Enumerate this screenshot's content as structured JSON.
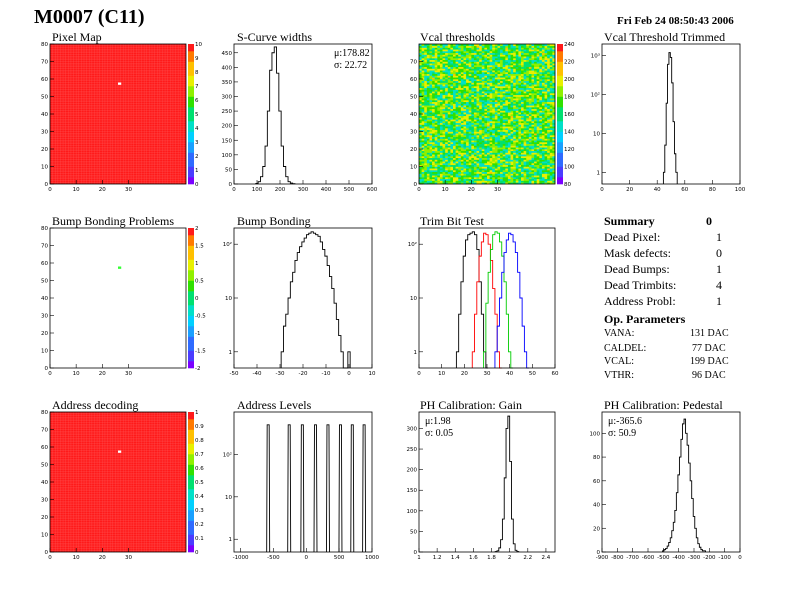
{
  "header": {
    "module": "M0007 (C11)",
    "datetime": "Fri Feb 24 08:50:43 2006"
  },
  "colors": {
    "map_fill": "#ff1a1a",
    "palette": [
      "#7a00ff",
      "#4b3cff",
      "#2f6bff",
      "#1aa0ff",
      "#00d0ff",
      "#00e0c8",
      "#00e070",
      "#30e000",
      "#90f000",
      "#e8f000",
      "#ffc000",
      "#ff7a00",
      "#ff1a1a"
    ],
    "trim_lines": [
      "#000000",
      "#ff0000",
      "#00cc00",
      "#0000ff"
    ],
    "green_dot": "#33ff33"
  },
  "summary": {
    "title": "Summary",
    "total": "0",
    "rows": [
      {
        "label": "Dead Pixel:",
        "value": "1"
      },
      {
        "label": "Mask defects:",
        "value": "0"
      },
      {
        "label": "Dead Bumps:",
        "value": "1"
      },
      {
        "label": "Dead Trimbits:",
        "value": "4"
      },
      {
        "label": "Address Probl:",
        "value": "1"
      }
    ],
    "op_title": "Op. Parameters",
    "op_rows": [
      {
        "label": "VANA:",
        "value": "131 DAC"
      },
      {
        "label": "CALDEL:",
        "value": "77 DAC"
      },
      {
        "label": "VCAL:",
        "value": "199 DAC"
      },
      {
        "label": "VTHR:",
        "value": "96 DAC"
      }
    ]
  },
  "chart_data": [
    {
      "id": "pixel_map",
      "type": "heatmap",
      "title": "Pixel Map",
      "xticks": [
        "0",
        "10",
        "20",
        "30"
      ],
      "yticks": [
        "0",
        "10",
        "20",
        "30",
        "40",
        "50",
        "60",
        "70",
        "80"
      ],
      "xlim": [
        0,
        52
      ],
      "ylim": [
        0,
        80
      ],
      "fill_value": 10,
      "special_cells": [
        {
          "x": 26,
          "y": 57,
          "value": 0
        }
      ],
      "zticks": [
        "0",
        "1",
        "2",
        "3",
        "4",
        "5",
        "6",
        "7",
        "8",
        "9",
        "10"
      ]
    },
    {
      "id": "scurve_widths",
      "type": "bar",
      "title": "S-Curve widths",
      "xticks": [
        "0",
        "100",
        "200",
        "300",
        "400",
        "500",
        "600"
      ],
      "yticks": [
        "0",
        "50",
        "100",
        "150",
        "200",
        "250",
        "300",
        "350",
        "400",
        "450"
      ],
      "xlim": [
        0,
        600
      ],
      "ylim": [
        0,
        480
      ],
      "x": [
        100,
        110,
        120,
        130,
        140,
        150,
        160,
        170,
        180,
        190,
        200,
        210,
        220,
        230,
        240,
        250,
        260
      ],
      "values": [
        2,
        8,
        25,
        60,
        130,
        250,
        390,
        450,
        470,
        380,
        250,
        130,
        60,
        25,
        8,
        3,
        1
      ],
      "stats": [
        "μ:178.82",
        "σ: 22.72"
      ]
    },
    {
      "id": "vcal_thresholds",
      "type": "heatmap",
      "title": "Vcal thresholds",
      "xticks": [
        "0",
        "10",
        "20",
        "30"
      ],
      "yticks": [
        "0",
        "10",
        "20",
        "30",
        "40",
        "50",
        "60",
        "70"
      ],
      "xlim": [
        0,
        52
      ],
      "ylim": [
        0,
        80
      ],
      "zticks": [
        "80",
        "100",
        "120",
        "140",
        "160",
        "180",
        "200",
        "220",
        "240"
      ],
      "zlim": [
        80,
        250
      ],
      "typical_value": 180
    },
    {
      "id": "vcal_threshold_trimmed",
      "type": "bar",
      "title": "Vcal Threshold Trimmed",
      "xticks": [
        "0",
        "20",
        "40",
        "60",
        "80",
        "100"
      ],
      "yticks": [
        "1",
        "10",
        "10²",
        "10³"
      ],
      "log_y": true,
      "xlim": [
        0,
        100
      ],
      "ylim": [
        0.5,
        2000
      ],
      "x": [
        45,
        46,
        47,
        48,
        49,
        50,
        51,
        52,
        53,
        54
      ],
      "values": [
        1,
        5,
        60,
        600,
        1200,
        900,
        200,
        20,
        3,
        1
      ]
    },
    {
      "id": "bump_bonding_problems",
      "type": "heatmap",
      "title": "Bump Bonding Problems",
      "xticks": [
        "0",
        "10",
        "20",
        "30"
      ],
      "yticks": [
        "0",
        "10",
        "20",
        "30",
        "40",
        "50",
        "60",
        "70",
        "80"
      ],
      "xlim": [
        0,
        52
      ],
      "ylim": [
        0,
        80
      ],
      "special_cells": [
        {
          "x": 26,
          "y": 57,
          "value": 1
        }
      ],
      "zticks": [
        "-2",
        "-1.5",
        "-1",
        "-0.5",
        "0",
        "0.5",
        "1",
        "1.5",
        "2"
      ]
    },
    {
      "id": "bump_bonding",
      "type": "bar",
      "title": "Bump Bonding",
      "xticks": [
        "-50",
        "-40",
        "-30",
        "-20",
        "-10",
        "0",
        "10"
      ],
      "yticks": [
        "1",
        "10",
        "10²"
      ],
      "log_y": true,
      "xlim": [
        -50,
        10
      ],
      "ylim": [
        0.5,
        200
      ],
      "x": [
        -29,
        -28,
        -27,
        -26,
        -25,
        -24,
        -23,
        -22,
        -21,
        -20,
        -19,
        -18,
        -17,
        -16,
        -15,
        -14,
        -13,
        -12,
        -11,
        -10,
        -9,
        -8,
        -7,
        -6,
        -5,
        -4,
        -3,
        -2,
        -1,
        0
      ],
      "values": [
        1,
        3,
        5,
        10,
        20,
        30,
        50,
        70,
        90,
        110,
        130,
        150,
        160,
        170,
        160,
        150,
        140,
        110,
        80,
        60,
        40,
        25,
        15,
        8,
        4,
        2,
        1,
        0,
        0,
        1
      ]
    },
    {
      "id": "trim_bit_test",
      "type": "line",
      "title": "Trim Bit Test",
      "xticks": [
        "0",
        "10",
        "20",
        "30",
        "40",
        "50",
        "60"
      ],
      "yticks": [
        "1",
        "10",
        "10²"
      ],
      "log_y": true,
      "xlim": [
        0,
        60
      ],
      "ylim": [
        0.5,
        200
      ],
      "series": [
        {
          "x": [
            17,
            18,
            19,
            20,
            21,
            22,
            23,
            24,
            25,
            26,
            27,
            28,
            29,
            30
          ],
          "values": [
            1,
            5,
            20,
            60,
            120,
            150,
            160,
            170,
            150,
            80,
            20,
            5,
            1,
            0
          ]
        },
        {
          "x": [
            24,
            25,
            26,
            27,
            28,
            29,
            30,
            31,
            32,
            33,
            34,
            35,
            36
          ],
          "values": [
            1,
            5,
            20,
            60,
            110,
            160,
            150,
            100,
            50,
            15,
            5,
            1,
            0
          ]
        },
        {
          "x": [
            29,
            30,
            31,
            32,
            33,
            34,
            35,
            36,
            37,
            38,
            39,
            40,
            41
          ],
          "values": [
            1,
            8,
            30,
            80,
            150,
            170,
            160,
            110,
            60,
            20,
            5,
            1,
            0
          ]
        },
        {
          "x": [
            34,
            35,
            36,
            37,
            38,
            39,
            40,
            41,
            42,
            43,
            44,
            45,
            46,
            47,
            48
          ],
          "values": [
            1,
            3,
            10,
            30,
            70,
            120,
            160,
            150,
            110,
            70,
            30,
            10,
            3,
            1,
            0
          ]
        }
      ]
    },
    {
      "id": "address_decoding",
      "type": "heatmap",
      "title": "Address decoding",
      "xticks": [
        "0",
        "10",
        "20",
        "30"
      ],
      "yticks": [
        "0",
        "10",
        "20",
        "30",
        "40",
        "50",
        "60",
        "70",
        "80"
      ],
      "xlim": [
        0,
        52
      ],
      "ylim": [
        0,
        80
      ],
      "fill_value": 1,
      "special_cells": [
        {
          "x": 26,
          "y": 57,
          "value": 0
        }
      ],
      "zticks": [
        "0",
        "0.1",
        "0.2",
        "0.3",
        "0.4",
        "0.5",
        "0.6",
        "0.7",
        "0.8",
        "0.9",
        "1"
      ]
    },
    {
      "id": "address_levels",
      "type": "bar",
      "title": "Address Levels",
      "xticks": [
        "-1000",
        "-500",
        "0",
        "500",
        "1000"
      ],
      "yticks": [
        "1",
        "10",
        "10²"
      ],
      "log_y": true,
      "xlim": [
        -1100,
        1000
      ],
      "ylim": [
        0.5,
        1000
      ],
      "x": [
        -580,
        -260,
        -60,
        140,
        330,
        520,
        700,
        880
      ],
      "values": [
        500,
        500,
        500,
        500,
        500,
        500,
        500,
        500
      ]
    },
    {
      "id": "ph_calibration_gain",
      "type": "bar",
      "title": "PH Calibration: Gain",
      "xticks": [
        "1",
        "1.2",
        "1.4",
        "1.6",
        "1.8",
        "2",
        "2.2",
        "2.4"
      ],
      "yticks": [
        "0",
        "50",
        "100",
        "150",
        "200",
        "250",
        "300"
      ],
      "xlim": [
        1,
        2.5
      ],
      "ylim": [
        0,
        340
      ],
      "x": [
        1.85,
        1.87,
        1.89,
        1.91,
        1.93,
        1.95,
        1.97,
        1.99,
        2.01,
        2.03,
        2.05,
        2.07,
        2.09
      ],
      "values": [
        1,
        3,
        10,
        30,
        80,
        180,
        300,
        330,
        220,
        80,
        20,
        4,
        1
      ],
      "stats": [
        "μ:1.98",
        "σ: 0.05"
      ]
    },
    {
      "id": "ph_calibration_pedestal",
      "type": "bar",
      "title": "PH Calibration: Pedestal",
      "xticks": [
        "-900",
        "-800",
        "-700",
        "-600",
        "-500",
        "-400",
        "-300",
        "-200",
        "-100",
        "0"
      ],
      "yticks": [
        "0",
        "20",
        "40",
        "60",
        "80",
        "100"
      ],
      "xlim": [
        -900,
        0
      ],
      "ylim": [
        0,
        118
      ],
      "x": [
        -500,
        -490,
        -480,
        -470,
        -460,
        -450,
        -440,
        -430,
        -420,
        -410,
        -400,
        -390,
        -380,
        -370,
        -360,
        -350,
        -340,
        -330,
        -320,
        -310,
        -300,
        -290,
        -280,
        -270,
        -260,
        -250,
        -240,
        -230
      ],
      "values": [
        1,
        2,
        3,
        5,
        8,
        12,
        18,
        25,
        35,
        50,
        65,
        80,
        95,
        108,
        112,
        100,
        90,
        75,
        60,
        45,
        30,
        20,
        12,
        7,
        4,
        2,
        1,
        1
      ],
      "stats": [
        "μ:-365.6",
        "σ: 50.9"
      ]
    }
  ]
}
